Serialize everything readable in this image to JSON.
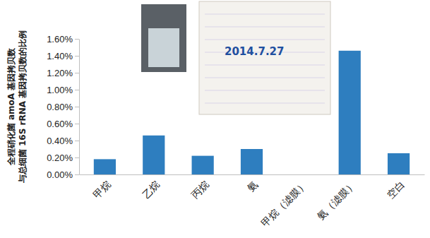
{
  "chart_data": {
    "type": "bar",
    "y_label": [
      "全程硝化菌 amoA 基因拷贝数",
      "与总细菌 16S rRNA 基因拷贝数的比例"
    ],
    "annotations": [
      "2014.7.27"
    ],
    "categories": [
      "甲烷",
      "乙烷",
      "丙烷",
      "氨",
      "甲烷（滤膜）",
      "氨（滤膜）",
      "空白"
    ],
    "values": [
      0.18,
      0.46,
      0.22,
      0.3,
      0,
      1.46,
      0.25
    ],
    "color": "#2e7ebf",
    "ylim": [
      0,
      1.6
    ],
    "yticks": [
      {
        "value": 0,
        "label": "0.00%"
      },
      {
        "value": 0.2,
        "label": "0.20%"
      },
      {
        "value": 0.4,
        "label": "0.40%"
      },
      {
        "value": 0.6,
        "label": "0.60%"
      },
      {
        "value": 0.8,
        "label": "0.80%"
      },
      {
        "value": 1.0,
        "label": "1.00%"
      },
      {
        "value": 1.2,
        "label": "1.20%"
      },
      {
        "value": 1.4,
        "label": "1.40%"
      },
      {
        "value": 1.6,
        "label": "1.60%"
      }
    ],
    "grid": false
  }
}
